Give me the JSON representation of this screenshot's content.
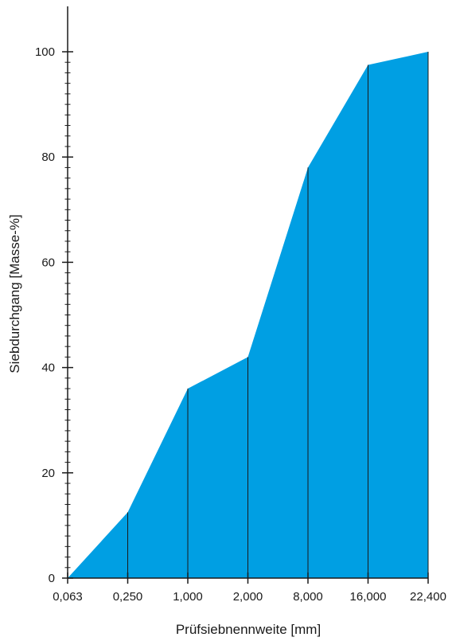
{
  "chart_data": {
    "type": "area",
    "x_categories": [
      "0,063",
      "0,250",
      "1,000",
      "2,000",
      "8,000",
      "16,000",
      "22,400"
    ],
    "series": [
      {
        "values": [
          0,
          12.5,
          36,
          42,
          78,
          97.5,
          100
        ]
      }
    ],
    "xlabel": "Prüfsiebnennweite [mm]",
    "ylabel": "Siebdurchgang [Masse-%]",
    "ylim": [
      0,
      100
    ],
    "y_ticks": [
      0,
      20,
      40,
      60,
      80,
      100
    ],
    "y_minor_step": 2,
    "grid": false,
    "fill_color": "#009fe3",
    "line_color": "#1a1a1a"
  }
}
